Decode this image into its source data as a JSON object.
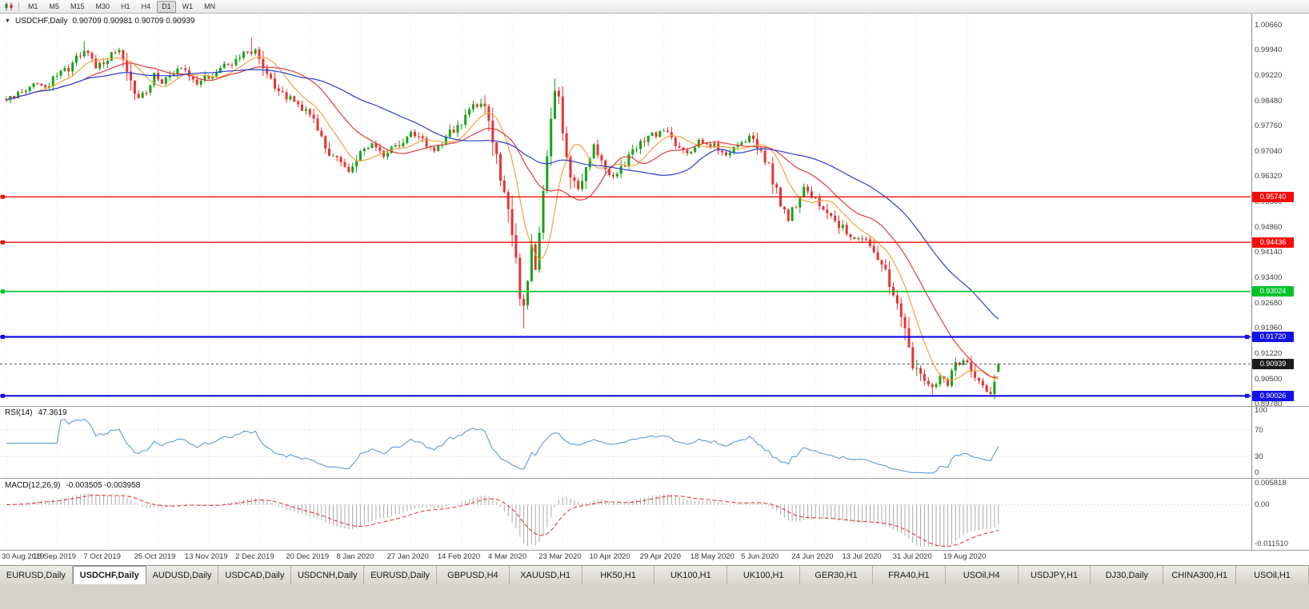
{
  "toolbar": {
    "timeframes": [
      "M1",
      "M5",
      "M15",
      "M30",
      "H1",
      "H4",
      "D1",
      "W1",
      "MN"
    ],
    "active_timeframe": "D1"
  },
  "chart": {
    "title": "USDCHF,Daily",
    "ohlc": "0.90709 0.90981 0.90709 0.90939"
  },
  "y_axis": {
    "top_price": 1.0066,
    "bottom_price": 0.8978,
    "labels": [
      "1.00660",
      "0.99940",
      "0.99220",
      "0.98480",
      "0.97760",
      "0.97040",
      "0.96320",
      "0.95580",
      "0.94860",
      "0.94140",
      "0.93400",
      "0.92680",
      "0.91960",
      "0.91220",
      "0.90500",
      "0.89780"
    ]
  },
  "levels": [
    {
      "price": 0.9574,
      "label": "0.95740",
      "color": "#f40d0d",
      "width": 1.4,
      "handles": "left"
    },
    {
      "price": 0.94436,
      "label": "0.94436",
      "color": "#f40d0d",
      "width": 1.4,
      "handles": "left"
    },
    {
      "price": 0.93024,
      "label": "0.93024",
      "color": "#00c32a",
      "width": 1.6,
      "handles": "left"
    },
    {
      "price": 0.9172,
      "label": "0.91720",
      "color": "#1212e8",
      "width": 2.2,
      "handles": "both"
    },
    {
      "price": 0.90026,
      "label": "0.90026",
      "color": "#1212e8",
      "width": 2.2,
      "handles": "both"
    }
  ],
  "current_price": {
    "value": 0.90939,
    "label": "0.90939",
    "badge_color": "#1b1b1b"
  },
  "chart_data": {
    "type": "candlestick",
    "symbol": "USDCHF",
    "timeframe": "Daily",
    "last_ohlc": {
      "open": 0.90709,
      "high": 0.90981,
      "low": 0.90709,
      "close": 0.90939
    },
    "y_range": [
      0.8978,
      1.0066
    ],
    "x_labels": [
      "30 Aug 2019",
      "18 Sep 2019",
      "7 Oct 2019",
      "25 Oct 2019",
      "13 Nov 2019",
      "2 Dec 2019",
      "20 Dec 2019",
      "8 Jan 2020",
      "27 Jan 2020",
      "14 Feb 2020",
      "4 Mar 2020",
      "23 Mar 2020",
      "10 Apr 2020",
      "29 Apr 2020",
      "18 May 2020",
      "5 Jun 2020",
      "24 Jun 2020",
      "13 Jul 2020",
      "31 Jul 2020",
      "19 Aug 2020"
    ],
    "candles_per_label_gap": 13,
    "num_candles": 256,
    "up_color": "#15a315",
    "down_color": "#e93232",
    "close_anchors": [
      [
        0,
        0.9855
      ],
      [
        3,
        0.9872
      ],
      [
        7,
        0.9896
      ],
      [
        10,
        0.9885
      ],
      [
        13,
        0.9922
      ],
      [
        16,
        0.9946
      ],
      [
        19,
        0.9984
      ],
      [
        21,
        0.9996
      ],
      [
        23,
        0.9952
      ],
      [
        26,
        0.9972
      ],
      [
        28,
        0.999
      ],
      [
        30,
        0.9984
      ],
      [
        32,
        0.9896
      ],
      [
        34,
        0.9856
      ],
      [
        36,
        0.9872
      ],
      [
        38,
        0.9926
      ],
      [
        40,
        0.9897
      ],
      [
        43,
        0.9931
      ],
      [
        46,
        0.9941
      ],
      [
        49,
        0.9903
      ],
      [
        52,
        0.9921
      ],
      [
        55,
        0.9946
      ],
      [
        58,
        0.9961
      ],
      [
        61,
        0.9984
      ],
      [
        64,
        0.9997
      ],
      [
        66,
        0.9942
      ],
      [
        68,
        0.9902
      ],
      [
        70,
        0.9876
      ],
      [
        73,
        0.9856
      ],
      [
        76,
        0.9831
      ],
      [
        78,
        0.9816
      ],
      [
        80,
        0.9771
      ],
      [
        82,
        0.9722
      ],
      [
        84,
        0.9691
      ],
      [
        86,
        0.9666
      ],
      [
        88,
        0.9651
      ],
      [
        91,
        0.9701
      ],
      [
        94,
        0.9722
      ],
      [
        97,
        0.9691
      ],
      [
        100,
        0.9721
      ],
      [
        104,
        0.9756
      ],
      [
        107,
        0.9731
      ],
      [
        110,
        0.9701
      ],
      [
        113,
        0.9746
      ],
      [
        117,
        0.9791
      ],
      [
        120,
        0.9831
      ],
      [
        122,
        0.9846
      ],
      [
        124,
        0.9791
      ],
      [
        126,
        0.9701
      ],
      [
        128,
        0.9591
      ],
      [
        130,
        0.9451
      ],
      [
        131,
        0.9381
      ],
      [
        132,
        0.9301
      ],
      [
        133,
        0.9251
      ],
      [
        134,
        0.9321
      ],
      [
        135,
        0.9421
      ],
      [
        136,
        0.9381
      ],
      [
        137,
        0.9481
      ],
      [
        138,
        0.9601
      ],
      [
        139,
        0.9721
      ],
      [
        140,
        0.9821
      ],
      [
        141,
        0.9881
      ],
      [
        142,
        0.9841
      ],
      [
        143,
        0.9781
      ],
      [
        144,
        0.9701
      ],
      [
        145,
        0.9641
      ],
      [
        147,
        0.9601
      ],
      [
        149,
        0.9671
      ],
      [
        151,
        0.9721
      ],
      [
        153,
        0.9681
      ],
      [
        156,
        0.9631
      ],
      [
        159,
        0.9671
      ],
      [
        162,
        0.9711
      ],
      [
        165,
        0.9746
      ],
      [
        169,
        0.9761
      ],
      [
        172,
        0.9731
      ],
      [
        175,
        0.9701
      ],
      [
        178,
        0.9736
      ],
      [
        182,
        0.9721
      ],
      [
        185,
        0.9691
      ],
      [
        188,
        0.9721
      ],
      [
        191,
        0.9746
      ],
      [
        194,
        0.9701
      ],
      [
        195,
        0.9681
      ],
      [
        197,
        0.9621
      ],
      [
        199,
        0.9561
      ],
      [
        201,
        0.9511
      ],
      [
        203,
        0.9561
      ],
      [
        205,
        0.9601
      ],
      [
        208,
        0.9571
      ],
      [
        211,
        0.9531
      ],
      [
        214,
        0.9491
      ],
      [
        217,
        0.9461
      ],
      [
        221,
        0.9441
      ],
      [
        224,
        0.9391
      ],
      [
        227,
        0.9321
      ],
      [
        229,
        0.9251
      ],
      [
        231,
        0.9181
      ],
      [
        233,
        0.9101
      ],
      [
        234,
        0.9075
      ],
      [
        236,
        0.904
      ],
      [
        238,
        0.9025
      ],
      [
        240,
        0.906
      ],
      [
        242,
        0.9041
      ],
      [
        244,
        0.9086
      ],
      [
        246,
        0.9106
      ],
      [
        248,
        0.9086
      ],
      [
        250,
        0.9046
      ],
      [
        252,
        0.9021
      ],
      [
        253,
        0.9008
      ],
      [
        254,
        0.9031
      ],
      [
        255,
        0.90939
      ]
    ],
    "wick_overrides": [
      {
        "i": 20,
        "high": 1.0022
      },
      {
        "i": 63,
        "high": 1.0031
      },
      {
        "i": 133,
        "low": 0.9196
      },
      {
        "i": 141,
        "high": 0.9915
      },
      {
        "i": 238,
        "low": 0.9004
      },
      {
        "i": 253,
        "low": 0.9003
      }
    ]
  },
  "moving_averages": [
    {
      "name": "ma-fast",
      "color": "#f2a33c",
      "period": 9
    },
    {
      "name": "ma-mid",
      "color": "#e23b3b",
      "period": 21
    },
    {
      "name": "ma-slow",
      "color": "#2c3fd0",
      "period": 45
    }
  ],
  "indicators": {
    "rsi": {
      "name": "RSI(14)",
      "value": "47.3619",
      "line_color": "#5b9bd5",
      "axis_labels": [
        "100",
        "70",
        "30",
        "0"
      ],
      "axis_values": [
        100,
        70,
        30,
        0
      ],
      "overbought": 70,
      "oversold": 30
    },
    "macd": {
      "name": "MACD(12,26,9)",
      "value": "-0.003505 -0.003958",
      "histogram_color": "#a9a9a9",
      "signal_color": "#e23b3b",
      "axis_top": "0.005818",
      "axis_zero": "0.00",
      "axis_bottom": "-0.011510",
      "scale_max": 0.005818,
      "scale_min": -0.01151
    }
  },
  "tabs": {
    "active_index": 1,
    "items": [
      "EURUSD,Daily",
      "USDCHF,Daily",
      "AUDUSD,Daily",
      "USDCAD,Daily",
      "USDCNH,Daily",
      "EURUSD,Daily",
      "GBPUSD,H4",
      "XAUUSD,H1",
      "HK50,H1",
      "UK100,H1",
      "UK100,H1",
      "GER30,H1",
      "FRA40,H1",
      "USOil,H4",
      "USDJPY,H1",
      "DJ30,Daily",
      "CHINA300,H1",
      "USOil,H1"
    ]
  }
}
